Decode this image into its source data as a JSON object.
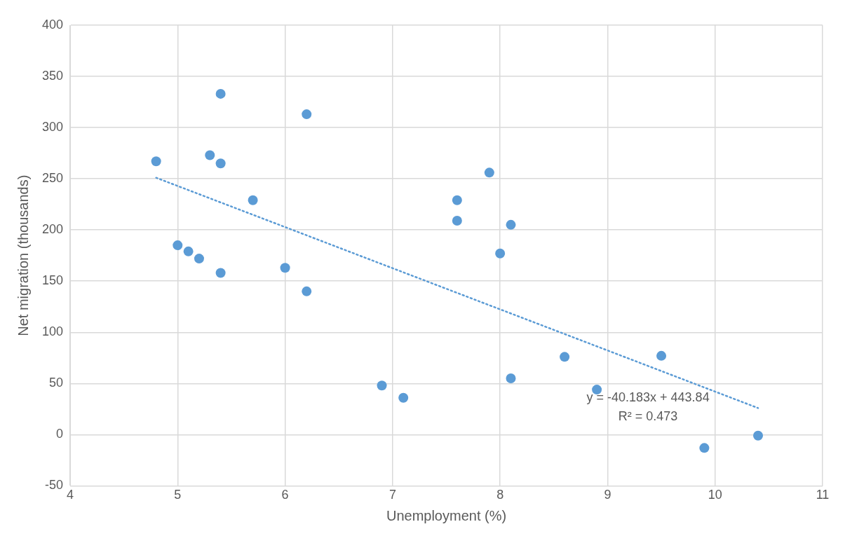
{
  "chart_data": {
    "type": "scatter",
    "xlabel": "Unemployment (%)",
    "ylabel": "Net migration (thousands)",
    "xlim": [
      4,
      11
    ],
    "xticks": [
      4,
      5,
      6,
      7,
      8,
      9,
      10,
      11
    ],
    "ylim": [
      -50,
      400
    ],
    "yticks": [
      -50,
      0,
      50,
      100,
      150,
      200,
      250,
      300,
      350,
      400
    ],
    "grid": true,
    "legend": false,
    "marker": "circle",
    "series": [
      {
        "color": "#5b9bd5",
        "x": [
          4.8,
          5.0,
          5.1,
          5.2,
          5.3,
          5.4,
          5.4,
          5.4,
          5.7,
          6.0,
          6.2,
          6.2,
          6.9,
          7.1,
          7.6,
          7.6,
          7.9,
          8.0,
          8.1,
          8.1,
          8.6,
          8.9,
          9.5,
          9.9,
          10.4
        ],
        "values": [
          267,
          185,
          179,
          172,
          273,
          333,
          265,
          158,
          229,
          163,
          313,
          140,
          48,
          36,
          229,
          209,
          256,
          177,
          205,
          55,
          76,
          44,
          77,
          -13,
          -1
        ]
      },
      {
        "type": "line",
        "color": "#5b9bd5",
        "line_style": "dotted",
        "marker": "none",
        "x": [
          4.8,
          10.4
        ],
        "values": [
          251,
          26
        ]
      }
    ],
    "annotations": [
      "y = -40.183x + 443.84",
      "R² = 0.473"
    ]
  }
}
